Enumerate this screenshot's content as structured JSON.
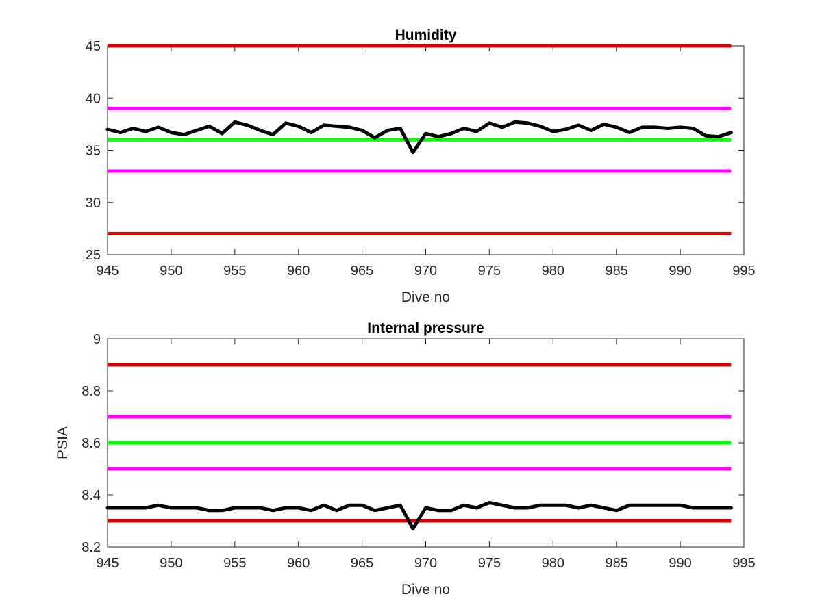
{
  "chart_data": [
    {
      "type": "line",
      "title": "Humidity",
      "xlabel": "Dive no",
      "ylabel": "",
      "xlim": [
        945,
        995
      ],
      "ylim": [
        25,
        45
      ],
      "xticks": [
        945,
        950,
        955,
        960,
        965,
        970,
        975,
        980,
        985,
        990,
        995
      ],
      "yticks": [
        25,
        30,
        35,
        40,
        45
      ],
      "grid": false,
      "series": [
        {
          "color": "#000000",
          "x": [
            945,
            946,
            947,
            948,
            949,
            950,
            951,
            952,
            953,
            954,
            955,
            956,
            957,
            958,
            959,
            960,
            961,
            962,
            963,
            964,
            965,
            966,
            967,
            968,
            969,
            970,
            971,
            972,
            973,
            974,
            975,
            976,
            977,
            978,
            979,
            980,
            981,
            982,
            983,
            984,
            985,
            986,
            987,
            988,
            989,
            990,
            991,
            992,
            993,
            994
          ],
          "y": [
            37.0,
            36.7,
            37.1,
            36.8,
            37.2,
            36.7,
            36.5,
            36.9,
            37.3,
            36.6,
            37.7,
            37.4,
            36.9,
            36.5,
            37.6,
            37.3,
            36.7,
            37.4,
            37.3,
            37.2,
            36.9,
            36.2,
            36.9,
            37.1,
            34.8,
            36.6,
            36.3,
            36.6,
            37.1,
            36.8,
            37.6,
            37.2,
            37.7,
            37.6,
            37.3,
            36.8,
            37.0,
            37.4,
            36.9,
            37.5,
            37.2,
            36.7,
            37.2,
            37.2,
            37.1,
            37.2,
            37.1,
            36.4,
            36.3,
            36.7
          ]
        }
      ],
      "reference_lines": [
        {
          "y": 45,
          "color": "#d40000"
        },
        {
          "y": 39,
          "color": "#ff00ff"
        },
        {
          "y": 36,
          "color": "#00ff00"
        },
        {
          "y": 33,
          "color": "#ff00ff"
        },
        {
          "y": 27,
          "color": "#d40000"
        }
      ],
      "reference_x_range": [
        945,
        994
      ]
    },
    {
      "type": "line",
      "title": "Internal pressure",
      "xlabel": "Dive no",
      "ylabel": "PSIA",
      "xlim": [
        945,
        995
      ],
      "ylim": [
        8.2,
        9.0
      ],
      "xticks": [
        945,
        950,
        955,
        960,
        965,
        970,
        975,
        980,
        985,
        990,
        995
      ],
      "yticks": [
        8.2,
        8.4,
        8.6,
        8.8,
        9.0
      ],
      "ytick_labels": [
        "8.2",
        "8.4",
        "8.6",
        "8.8",
        "9"
      ],
      "grid": false,
      "series": [
        {
          "color": "#000000",
          "x": [
            945,
            946,
            947,
            948,
            949,
            950,
            951,
            952,
            953,
            954,
            955,
            956,
            957,
            958,
            959,
            960,
            961,
            962,
            963,
            964,
            965,
            966,
            967,
            968,
            969,
            970,
            971,
            972,
            973,
            974,
            975,
            976,
            977,
            978,
            979,
            980,
            981,
            982,
            983,
            984,
            985,
            986,
            987,
            988,
            989,
            990,
            991,
            992,
            993,
            994
          ],
          "y": [
            8.35,
            8.35,
            8.35,
            8.35,
            8.36,
            8.35,
            8.35,
            8.35,
            8.34,
            8.34,
            8.35,
            8.35,
            8.35,
            8.34,
            8.35,
            8.35,
            8.34,
            8.36,
            8.34,
            8.36,
            8.36,
            8.34,
            8.35,
            8.36,
            8.27,
            8.35,
            8.34,
            8.34,
            8.36,
            8.35,
            8.37,
            8.36,
            8.35,
            8.35,
            8.36,
            8.36,
            8.36,
            8.35,
            8.36,
            8.35,
            8.34,
            8.36,
            8.36,
            8.36,
            8.36,
            8.36,
            8.35,
            8.35,
            8.35,
            8.35
          ]
        }
      ],
      "reference_lines": [
        {
          "y": 8.9,
          "color": "#d40000"
        },
        {
          "y": 8.7,
          "color": "#ff00ff"
        },
        {
          "y": 8.6,
          "color": "#00ff00"
        },
        {
          "y": 8.5,
          "color": "#ff00ff"
        },
        {
          "y": 8.3,
          "color": "#d40000"
        }
      ],
      "reference_x_range": [
        945,
        994
      ]
    }
  ]
}
